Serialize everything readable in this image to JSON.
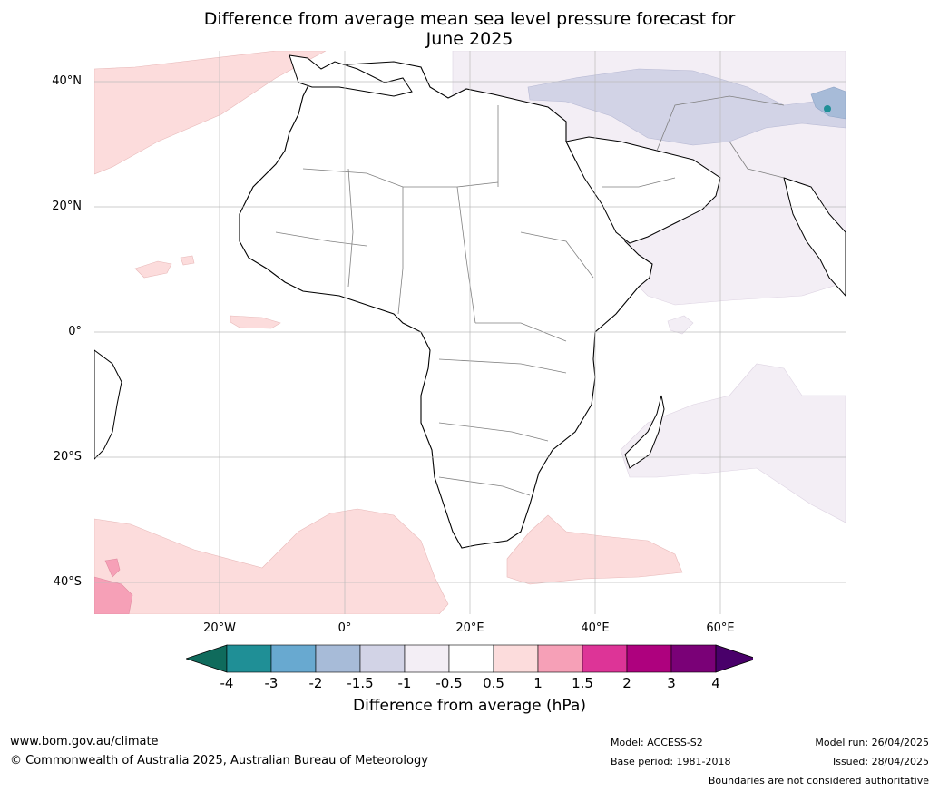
{
  "title_line1": "Difference from average mean sea level pressure forecast for",
  "title_line2": "June 2025",
  "lat_labels": [
    "40°N",
    "20°N",
    "0°",
    "20°S",
    "40°S"
  ],
  "lon_labels": [
    "20°W",
    "0°",
    "20°E",
    "40°E",
    "60°E"
  ],
  "colorbar": {
    "ticks": [
      "-4",
      "-3",
      "-2",
      "-1.5",
      "-1",
      "-0.5",
      "0.5",
      "1",
      "1.5",
      "2",
      "3",
      "4"
    ],
    "colors": [
      "#0f6b5c",
      "#1f8f96",
      "#68a9d0",
      "#a7bbd8",
      "#d2d3e6",
      "#f3eef5",
      "#ffffff",
      "#fcdcdc",
      "#f6a0b7",
      "#dd3497",
      "#ae017e",
      "#7a0177",
      "#49006a"
    ],
    "label": "Difference from average (hPa)"
  },
  "footer": {
    "website": "www.bom.gov.au/climate",
    "copyright": "© Commonwealth of Australia 2025, Australian Bureau of Meteorology",
    "model": "Model: ACCESS-S2",
    "base_period": "Base period: 1981-2018",
    "model_run": "Model run: 26/04/2025",
    "issued": "Issued: 28/04/2025",
    "disclaimer": "Boundaries are not considered authoritative"
  }
}
